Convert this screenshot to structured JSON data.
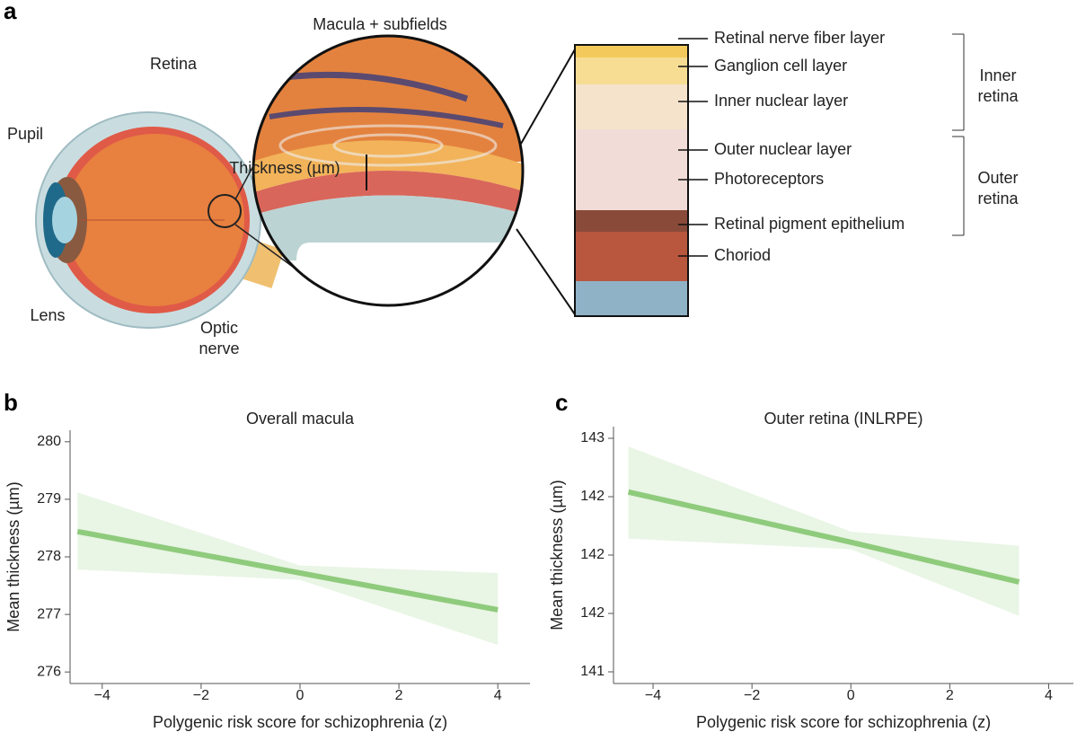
{
  "panels": [
    "a",
    "b",
    "c"
  ],
  "diagram": {
    "eye_labels": {
      "macula": "Macula + subfields",
      "retina": "Retina",
      "pupil": "Pupil",
      "thickness": "Thickness (µm)",
      "lens": "Lens",
      "optic_nerve": [
        "Optic",
        "nerve"
      ]
    },
    "layers": [
      "Retinal nerve fiber layer",
      "Ganglion cell layer",
      "Inner nuclear layer",
      "Outer nuclear layer",
      "Photoreceptors",
      "Retinal pigment epithelium",
      "Choriod"
    ],
    "groups": {
      "inner": [
        "Inner",
        "retina"
      ],
      "outer": [
        "Outer",
        "retina"
      ]
    }
  },
  "chart_data": [
    {
      "type": "line",
      "title": "Overall macula",
      "x_label": "Polygenic risk score for schizophrenia (z)",
      "y_label": "Mean thickness (µm)",
      "xlim": [
        -4.65,
        4.65
      ],
      "xticks": [
        {
          "value": -4,
          "label": "−4"
        },
        {
          "value": -2,
          "label": "−2"
        },
        0,
        2,
        4
      ],
      "ylim": [
        275.8,
        280.2
      ],
      "yticks": [
        276,
        277,
        278,
        279,
        280
      ],
      "x": [
        -4.5,
        0,
        4
      ],
      "series": [
        {
          "color": "#8fcb7c",
          "values": [
            278.44,
            277.72,
            277.08
          ],
          "lower": [
            277.78,
            277.6,
            276.47
          ],
          "upper": [
            279.12,
            277.85,
            277.72
          ]
        }
      ]
    },
    {
      "type": "line",
      "title": "Outer retina (INLRPE)",
      "x_label": "Polygenic risk score for schizophrenia (z)",
      "y_label": "Mean thickness (µm)",
      "xlim": [
        -4.8,
        4.5
      ],
      "xticks": [
        {
          "value": -4,
          "label": "−4"
        },
        {
          "value": -2,
          "label": "−2"
        },
        0,
        2,
        4
      ],
      "ylim": [
        140.9,
        143.1
      ],
      "yticks": [
        143,
        {
          "value": 142.5,
          "label": "142"
        },
        142,
        {
          "value": 141.5,
          "label": "142"
        },
        141
      ],
      "x": [
        -4.5,
        0,
        3.4
      ],
      "series": [
        {
          "color": "#8fcb7c",
          "values": [
            142.54,
            142.11,
            141.77
          ],
          "lower": [
            142.14,
            142.05,
            141.48
          ],
          "upper": [
            142.93,
            142.2,
            142.08
          ]
        }
      ]
    }
  ]
}
